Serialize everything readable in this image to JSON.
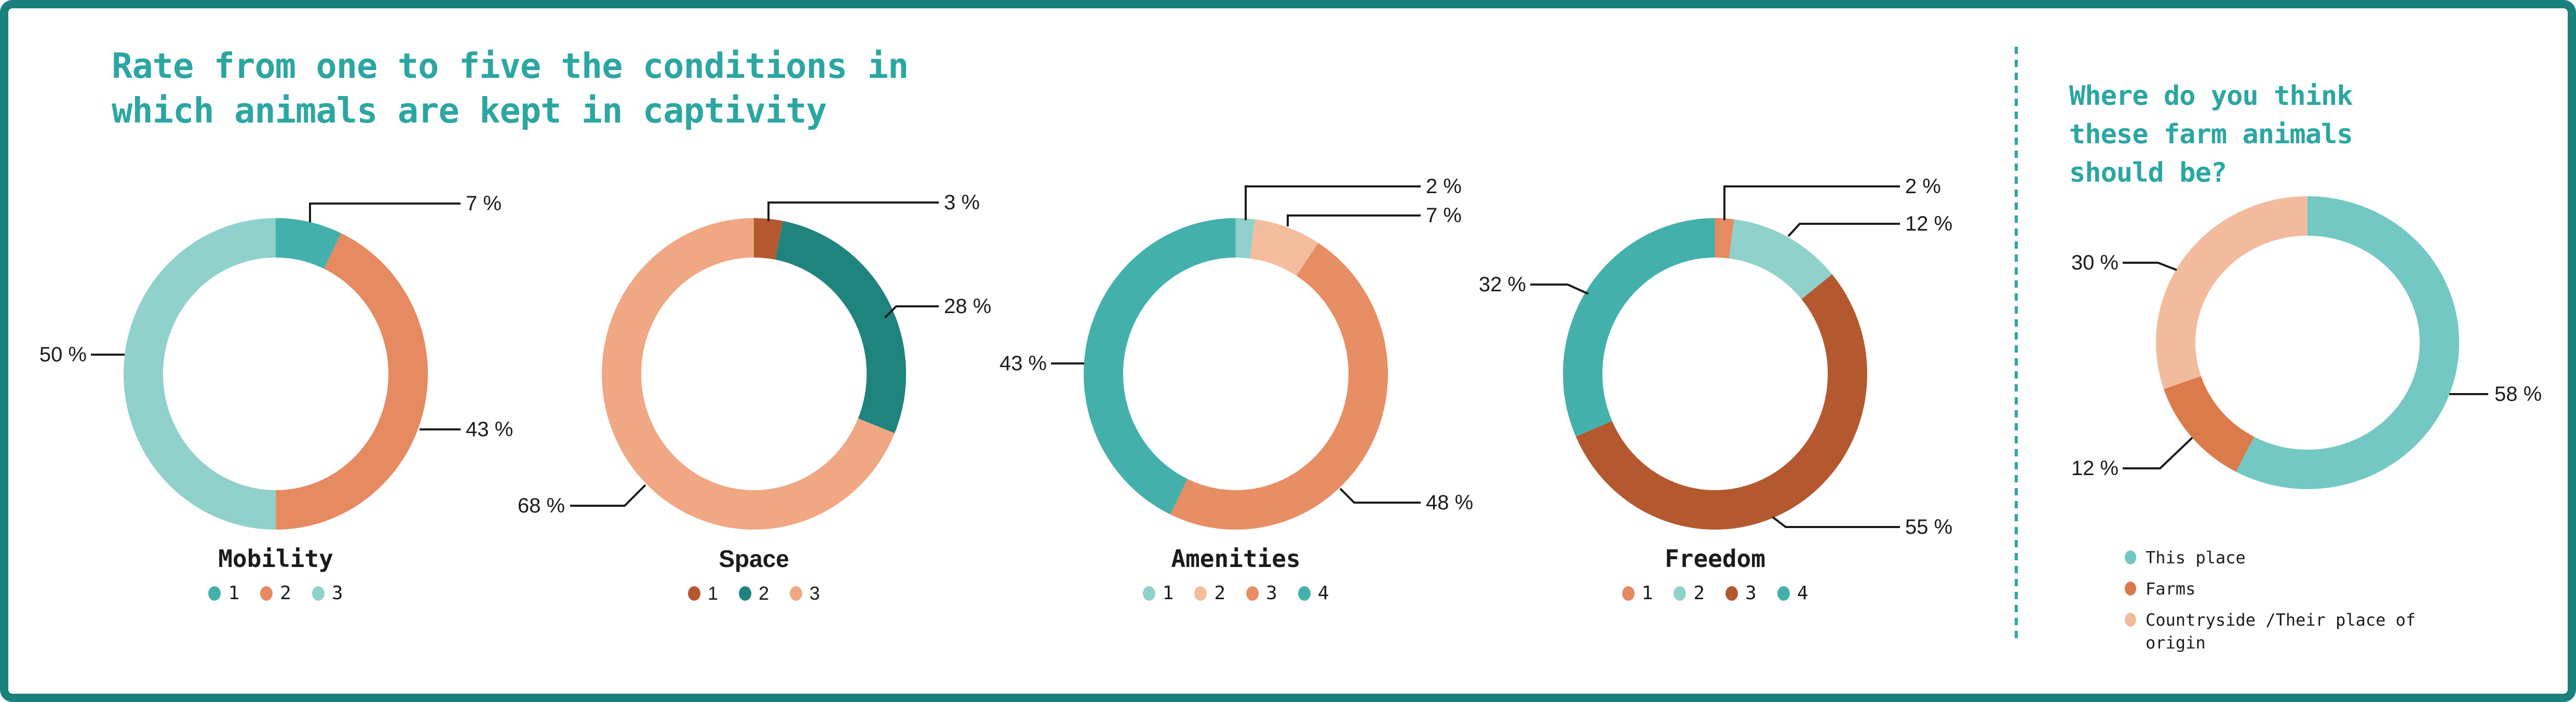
{
  "colors": {
    "accent": "#2ca6a2",
    "frame": "#1a807c",
    "label_text": "#1b1b1b"
  },
  "left_section": {
    "title": "Rate from one to five the conditions in\nwhich animals are kept in captivity"
  },
  "right_section": {
    "title": "Where do you think\nthese farm animals\nshould be?"
  },
  "chart_data": [
    {
      "type": "pie",
      "subtype": "donut",
      "title": "Mobility",
      "legend_position": "bottom",
      "slices": [
        {
          "label": "1",
          "value": 7,
          "pct_label": "7 %",
          "color": "#44b0ab"
        },
        {
          "label": "2",
          "value": 43,
          "pct_label": "43 %",
          "color": "#e68a62"
        },
        {
          "label": "3",
          "value": 50,
          "pct_label": "50 %",
          "color": "#90d1cc"
        }
      ]
    },
    {
      "type": "pie",
      "subtype": "donut",
      "title": "Space",
      "legend_position": "bottom",
      "slices": [
        {
          "label": "1",
          "value": 3,
          "pct_label": "3 %",
          "color": "#b4592f"
        },
        {
          "label": "2",
          "value": 28,
          "pct_label": "28 %",
          "color": "#1f837e"
        },
        {
          "label": "3",
          "value": 68,
          "pct_label": "68 %",
          "color": "#efa883"
        }
      ]
    },
    {
      "type": "pie",
      "subtype": "donut",
      "title": "Amenities",
      "legend_position": "bottom",
      "slices": [
        {
          "label": "1",
          "value": 2,
          "pct_label": "2 %",
          "color": "#90d1cc"
        },
        {
          "label": "2",
          "value": 7,
          "pct_label": "7 %",
          "color": "#f4bd9e"
        },
        {
          "label": "3",
          "value": 48,
          "pct_label": "48 %",
          "color": "#e78e65"
        },
        {
          "label": "4",
          "value": 43,
          "pct_label": "43 %",
          "color": "#44b0ab"
        }
      ]
    },
    {
      "type": "pie",
      "subtype": "donut",
      "title": "Freedom",
      "legend_position": "bottom",
      "slices": [
        {
          "label": "1",
          "value": 2,
          "pct_label": "2 %",
          "color": "#e68a62"
        },
        {
          "label": "2",
          "value": 12,
          "pct_label": "12 %",
          "color": "#90d1cc"
        },
        {
          "label": "3",
          "value": 55,
          "pct_label": "55 %",
          "color": "#b4592f"
        },
        {
          "label": "4",
          "value": 32,
          "pct_label": "32 %",
          "color": "#44b0ab"
        }
      ]
    },
    {
      "type": "pie",
      "subtype": "donut",
      "title": "Where do you think these farm animals should be?",
      "legend_position": "bottom",
      "slices": [
        {
          "label": "This place",
          "value": 58,
          "pct_label": "58 %",
          "color": "#74c8c4"
        },
        {
          "label": "Farms",
          "value": 12,
          "pct_label": "12 %",
          "color": "#db7b4b"
        },
        {
          "label": "Countryside /Their place of origin",
          "value": 30,
          "pct_label": "30 %",
          "color": "#f2bb9d"
        }
      ]
    }
  ]
}
